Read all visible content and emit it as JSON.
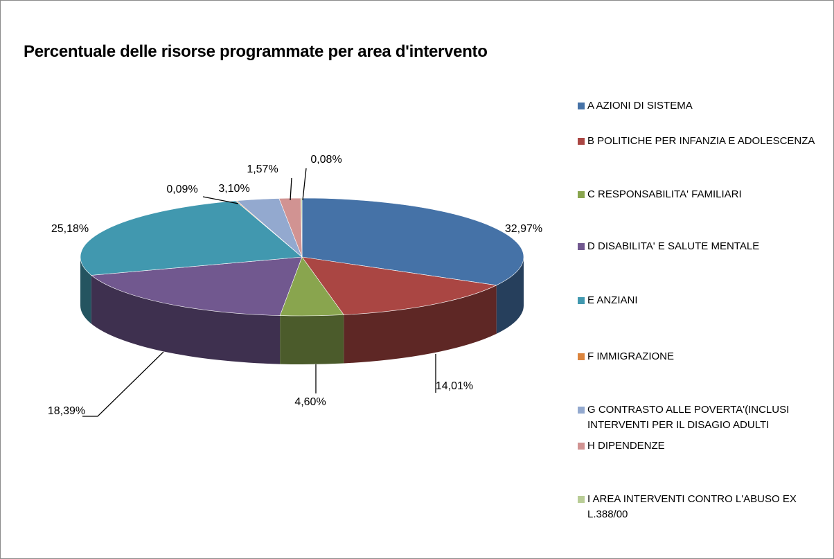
{
  "chart_data": {
    "type": "pie3d",
    "title": "Percentuale delle risorse programmate per area d'intervento",
    "categories": [
      "A AZIONI DI SISTEMA",
      "B POLITICHE PER INFANZIA E ADOLESCENZA",
      "C RESPONSABILITA' FAMILIARI",
      "D DISABILITA' E SALUTE MENTALE",
      "E ANZIANI",
      "F IMMIGRAZIONE",
      "G CONTRASTO ALLE POVERTA'(INCLUSI INTERVENTI PER IL DISAGIO ADULTI",
      "H DIPENDENZE",
      "I AREA INTERVENTI CONTRO L'ABUSO EX L.388/00"
    ],
    "values": [
      32.97,
      14.01,
      4.6,
      18.39,
      25.18,
      0.09,
      3.1,
      1.57,
      0.08
    ],
    "value_labels": [
      "32,97%",
      "14,01%",
      "4,60%",
      "18,39%",
      "25,18%",
      "0,09%",
      "3,10%",
      "1,57%",
      "0,08%"
    ],
    "colors": [
      "#4572a7",
      "#aa4643",
      "#89a54e",
      "#71588f",
      "#4198af",
      "#db843d",
      "#93a9cf",
      "#d19392",
      "#b9cd96"
    ],
    "legend": "right"
  }
}
